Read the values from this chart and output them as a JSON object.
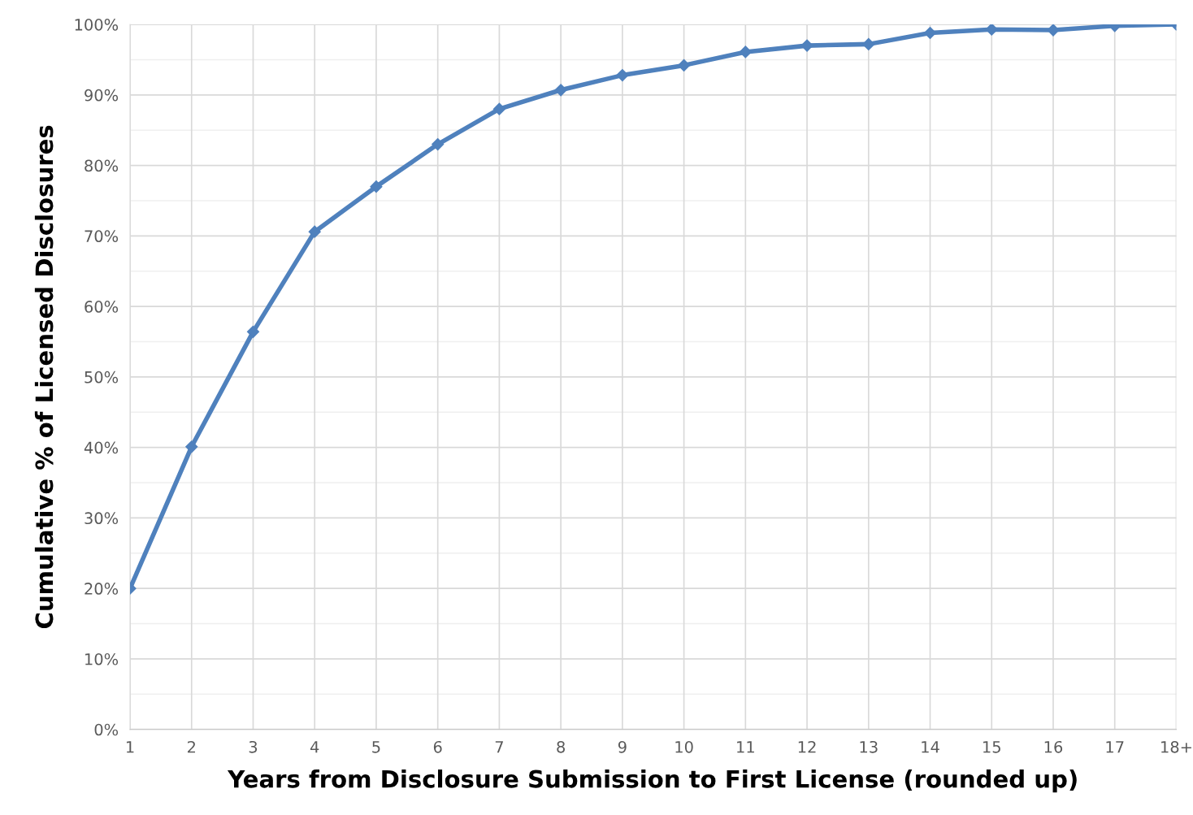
{
  "chart_data": {
    "type": "line",
    "xlabel": "Years from Disclosure Submission to First License (rounded up)",
    "ylabel": "Cumulative % of Licensed Disclosures",
    "categories": [
      "1",
      "2",
      "3",
      "4",
      "5",
      "6",
      "7",
      "8",
      "9",
      "10",
      "11",
      "12",
      "13",
      "14",
      "15",
      "16",
      "17",
      "18+"
    ],
    "series": [
      {
        "color": "#4f81bd",
        "values": [
          20,
          40.1,
          56.4,
          70.6,
          77.0,
          83.0,
          88.0,
          90.7,
          92.8,
          94.2,
          96.1,
          97.0,
          97.2,
          98.8,
          99.3,
          99.2,
          99.8,
          100
        ]
      }
    ],
    "ylim": [
      0,
      100
    ],
    "yticks": [
      {
        "value": 0,
        "label": "0%"
      },
      {
        "value": 10,
        "label": "10%"
      },
      {
        "value": 20,
        "label": "20%"
      },
      {
        "value": 30,
        "label": "30%"
      },
      {
        "value": 40,
        "label": "40%"
      },
      {
        "value": 50,
        "label": "50%"
      },
      {
        "value": 60,
        "label": "60%"
      },
      {
        "value": 70,
        "label": "70%"
      },
      {
        "value": 80,
        "label": "80%"
      },
      {
        "value": 90,
        "label": "90%"
      },
      {
        "value": 100,
        "label": "100%"
      }
    ],
    "grid": true,
    "marker": "diamond",
    "line_style": "solid",
    "legend": false
  }
}
